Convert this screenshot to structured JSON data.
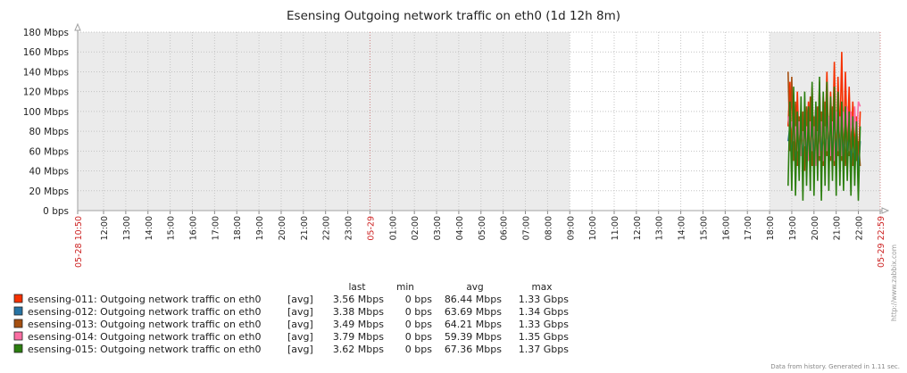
{
  "chart_data": {
    "type": "line",
    "title": "Esensing Outgoing network traffic on eth0 (1d 12h 8m)",
    "y_ticks": [
      "0 bps",
      "20 Mbps",
      "40 Mbps",
      "60 Mbps",
      "80 Mbps",
      "100 Mbps",
      "120 Mbps",
      "140 Mbps",
      "160 Mbps",
      "180 Mbps"
    ],
    "ylim": [
      0,
      180
    ],
    "y_unit": "Mbps",
    "grid": true,
    "x_time_range": [
      "05-28 10:50",
      "05-29 22:59"
    ],
    "x_ticks": [
      {
        "label": "05-28 10:50",
        "hours": 0.0,
        "red": true
      },
      {
        "label": "12:00",
        "hours": 1.1667
      },
      {
        "label": "13:00",
        "hours": 2.1667
      },
      {
        "label": "14:00",
        "hours": 3.1667
      },
      {
        "label": "15:00",
        "hours": 4.1667
      },
      {
        "label": "16:00",
        "hours": 5.1667
      },
      {
        "label": "17:00",
        "hours": 6.1667
      },
      {
        "label": "18:00",
        "hours": 7.1667
      },
      {
        "label": "19:00",
        "hours": 8.1667
      },
      {
        "label": "20:00",
        "hours": 9.1667
      },
      {
        "label": "21:00",
        "hours": 10.1667
      },
      {
        "label": "22:00",
        "hours": 11.1667
      },
      {
        "label": "23:00",
        "hours": 12.1667
      },
      {
        "label": "05-29",
        "hours": 13.1667,
        "red": true
      },
      {
        "label": "01:00",
        "hours": 14.1667
      },
      {
        "label": "02:00",
        "hours": 15.1667
      },
      {
        "label": "03:00",
        "hours": 16.1667
      },
      {
        "label": "04:00",
        "hours": 17.1667
      },
      {
        "label": "05:00",
        "hours": 18.1667
      },
      {
        "label": "06:00",
        "hours": 19.1667
      },
      {
        "label": "07:00",
        "hours": 20.1667
      },
      {
        "label": "08:00",
        "hours": 21.1667
      },
      {
        "label": "09:00",
        "hours": 22.1667
      },
      {
        "label": "10:00",
        "hours": 23.1667
      },
      {
        "label": "11:00",
        "hours": 24.1667
      },
      {
        "label": "12:00",
        "hours": 25.1667
      },
      {
        "label": "13:00",
        "hours": 26.1667
      },
      {
        "label": "14:00",
        "hours": 27.1667
      },
      {
        "label": "15:00",
        "hours": 28.1667
      },
      {
        "label": "16:00",
        "hours": 29.1667
      },
      {
        "label": "17:00",
        "hours": 30.1667
      },
      {
        "label": "18:00",
        "hours": 31.1667
      },
      {
        "label": "19:00",
        "hours": 32.1667
      },
      {
        "label": "20:00",
        "hours": 33.1667
      },
      {
        "label": "21:00",
        "hours": 34.1667
      },
      {
        "label": "22:00",
        "hours": 35.1667
      },
      {
        "label": "05-29 22:59",
        "hours": 36.15,
        "red": true
      }
    ],
    "shaded_periods_hours": [
      [
        0,
        22.1667
      ],
      [
        31.1667,
        36.15
      ]
    ],
    "legend_headers": [
      "last",
      "min",
      "avg",
      "max"
    ],
    "series": [
      {
        "name": "esensing-011: Outgoing network traffic on eth0",
        "func": "[avg]",
        "color": "#f63100",
        "last": "3.56 Mbps",
        "min": "0 bps",
        "avg": "86.44 Mbps",
        "max": "1.33 Gbps",
        "start_hours": 32.0,
        "step_hours": 0.0833,
        "values": [
          85,
          130,
          60,
          110,
          40,
          120,
          55,
          100,
          70,
          95,
          45,
          110,
          65,
          125,
          50,
          105,
          60,
          130,
          40,
          115,
          70,
          140,
          55,
          120,
          60,
          150,
          45,
          135,
          70,
          160,
          50,
          140,
          65,
          125,
          55,
          110,
          60,
          95,
          45,
          100
        ]
      },
      {
        "name": "esensing-012: Outgoing network traffic on eth0",
        "func": "[avg]",
        "color": "#2774a4",
        "last": "3.38 Mbps",
        "min": "0 bps",
        "avg": "63.69 Mbps",
        "max": "1.34 Gbps",
        "start_hours": 32.0,
        "step_hours": 0.0833,
        "values": [
          70,
          85,
          50,
          90,
          40,
          80,
          55,
          95,
          45,
          85,
          60,
          100,
          50,
          90,
          55,
          105,
          45,
          95,
          60,
          100,
          50,
          110,
          55,
          95,
          60,
          105,
          45,
          100,
          55,
          95,
          50,
          90,
          60,
          85,
          45,
          80,
          50,
          75,
          40,
          70
        ]
      },
      {
        "name": "esensing-013: Outgoing network traffic on eth0",
        "func": "[avg]",
        "color": "#a54f10",
        "last": "3.49 Mbps",
        "min": "0 bps",
        "avg": "64.21 Mbps",
        "max": "1.33 Gbps",
        "start_hours": 32.0,
        "step_hours": 0.0833,
        "values": [
          140,
          60,
          135,
          50,
          110,
          45,
          95,
          55,
          100,
          40,
          105,
          50,
          115,
          45,
          95,
          55,
          105,
          50,
          100,
          45,
          110,
          55,
          95,
          50,
          105,
          45,
          100,
          55,
          95,
          50,
          90,
          45,
          85,
          55,
          80,
          45,
          75,
          50,
          70,
          45
        ]
      },
      {
        "name": "esensing-014: Outgoing network traffic on eth0",
        "func": "[avg]",
        "color": "#fc6ea3",
        "last": "3.79 Mbps",
        "min": "0 bps",
        "avg": "59.39 Mbps",
        "max": "1.35 Gbps",
        "start_hours": 32.0,
        "step_hours": 0.0833,
        "values": [
          95,
          80,
          90,
          70,
          85,
          60,
          90,
          55,
          80,
          65,
          85,
          50,
          90,
          60,
          85,
          45,
          80,
          55,
          90,
          50,
          85,
          60,
          95,
          55,
          90,
          50,
          100,
          60,
          95,
          55,
          100,
          65,
          105,
          60,
          100,
          70,
          105,
          65,
          110,
          105
        ]
      },
      {
        "name": "esensing-015: Outgoing network traffic on eth0",
        "func": "[avg]",
        "color": "#2b7e0f",
        "last": "3.62 Mbps",
        "min": "0 bps",
        "avg": "67.36 Mbps",
        "max": "1.37 Gbps",
        "start_hours": 32.0,
        "step_hours": 0.0833,
        "values": [
          25,
          110,
          20,
          125,
          15,
          100,
          30,
          115,
          10,
          120,
          25,
          105,
          20,
          130,
          15,
          110,
          30,
          135,
          10,
          120,
          25,
          130,
          20,
          115,
          30,
          125,
          15,
          120,
          25,
          110,
          20,
          105,
          30,
          100,
          15,
          95,
          25,
          90,
          10,
          85
        ]
      }
    ]
  },
  "footer": {
    "credit": "Data from history. Generated in 1.11 sec.",
    "side": "http://www.zabbix.com"
  }
}
